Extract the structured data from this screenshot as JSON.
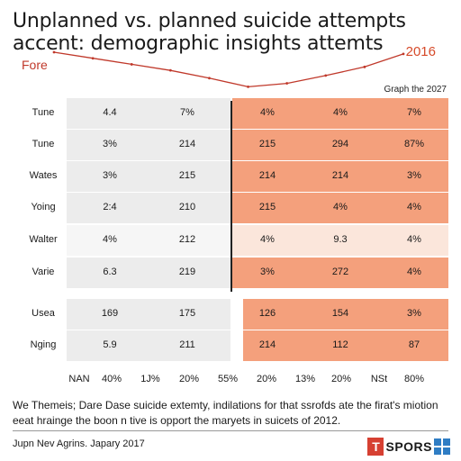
{
  "title_line1": "Unplanned vs. planned suicide attempts",
  "title_line2": "accent: demographic insights attemts",
  "label_left": "Fore",
  "label_right": "2016",
  "label_graph": "Graph the 2027",
  "footer_line1": "We Themeis; Dare Dase suicide extemty, indilations for that ssrofds ate the firat's miotion",
  "footer_line2": "eeat hrainge the boon n tive is opport the maryets in suicets of 2012.",
  "source": "Jupn Nev Agrins. Japary 2017",
  "brand": {
    "mark": "T",
    "name": "SPORS"
  },
  "colors": {
    "accent": "#f4a07c",
    "accent_light": "#fbe6db",
    "grey": "#ececec",
    "grey_light": "#f6f6f6",
    "line": "#c0392b"
  },
  "chart_data": {
    "type": "table",
    "title": "Unplanned vs. planned suicide attempts",
    "subtitle": "accent: demographic insights attemts",
    "columns": [
      "NAN",
      "40%",
      "1J%",
      "20%",
      "55%",
      "20%",
      "13%",
      "20%",
      "NSt",
      "80%"
    ],
    "rows": [
      {
        "label": "Tune",
        "values": [
          "4.4",
          "7%",
          "4%",
          "4%",
          "7%"
        ]
      },
      {
        "label": "Tune",
        "values": [
          "3%",
          "214",
          "215",
          "294",
          "87%"
        ]
      },
      {
        "label": "Wates",
        "values": [
          "3%",
          "215",
          "214",
          "214",
          "3%"
        ]
      },
      {
        "label": "Yoing",
        "values": [
          "2:4",
          "210",
          "215",
          "4%",
          "4%"
        ]
      },
      {
        "label": "Walter",
        "values": [
          "4%",
          "212",
          "4%",
          "9.3",
          "4%"
        ]
      },
      {
        "label": "Varie",
        "values": [
          "6.3",
          "219",
          "3%",
          "272",
          "4%"
        ]
      },
      {
        "label": "Usea",
        "values": [
          "169",
          "175",
          "126",
          "154",
          "3%"
        ]
      },
      {
        "label": "Nging",
        "values": [
          "5.9",
          "211",
          "214",
          "112",
          "87"
        ]
      }
    ],
    "trend_line": {
      "series_start_label": "Fore",
      "series_end_label": "2016",
      "y": [
        100,
        86,
        72,
        58,
        40,
        20,
        28,
        46,
        66,
        96
      ]
    }
  }
}
